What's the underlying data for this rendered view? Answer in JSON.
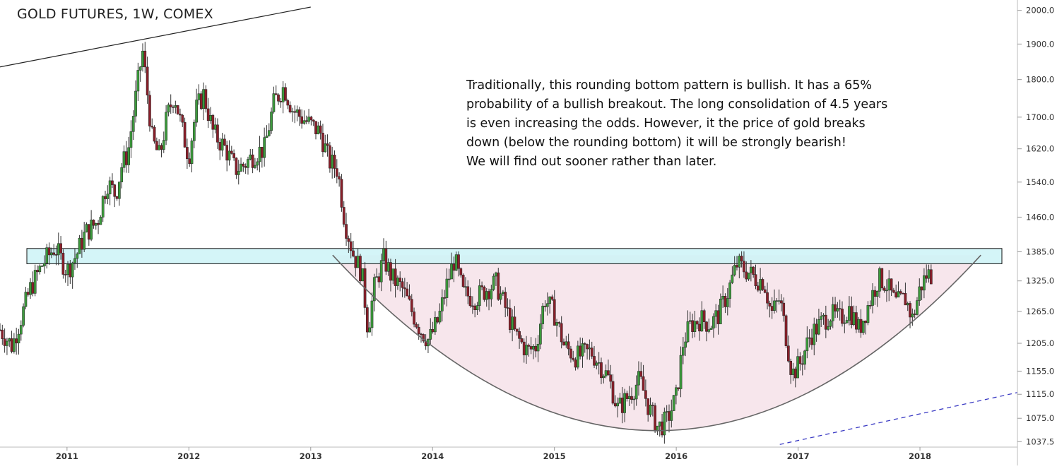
{
  "chart_data": {
    "type": "candlestick",
    "title": "GOLD FUTURES, 1W, COMEX",
    "annotation": [
      "Traditionally, this rounding bottom pattern is bullish. It has a 65%",
      "probability of a bullish breakout. The long consolidation of 4.5 years",
      "is even increasing the odds. However, it the price of gold breaks",
      "down (below the rounding bottom) it will be strongly bearish!",
      "We will find out sooner rather than later."
    ],
    "x_axis": {
      "ticks": [
        "2011",
        "2012",
        "2013",
        "2014",
        "2015",
        "2016",
        "2017",
        "2018"
      ],
      "range": [
        2010.45,
        2018.8
      ]
    },
    "y_axis": {
      "ticks": [
        "2000.0",
        "1900.0",
        "1800.0",
        "1700.0",
        "1620.0",
        "1540.0",
        "1460.0",
        "1385.0",
        "1325.0",
        "1265.0",
        "1205.0",
        "1155.0",
        "1115.0",
        "1075.0",
        "1037.5"
      ],
      "scale": "log",
      "range": [
        1030,
        2010
      ]
    },
    "colors": {
      "up": "#3c9a3c",
      "down": "#8a1f2a",
      "zone_fill": "#cdf3f7",
      "zone_stroke": "#111111",
      "bowl_fill": "#f7e6ec",
      "bowl_line": "#666666",
      "trend_line": "#222222",
      "dashed_line": "#3b3bc4"
    },
    "resistance_zone": {
      "low": 1360,
      "high": 1392,
      "x_start": 2010.45,
      "x_end": 2018.8
    },
    "rounding_bottom": {
      "x_start": 2013.18,
      "x_end": 2018.5,
      "top_price": 1378,
      "bottom_x": 2015.85,
      "bottom_price": 1055
    },
    "trend_line_upper": {
      "x1": 2010.45,
      "y1": 1835,
      "x2": 2013.0,
      "y2": 2010
    },
    "trend_line_dashed": {
      "x1": 2016.85,
      "y1": 1033,
      "x2": 2018.8,
      "y2": 1118
    },
    "price_path": [
      [
        2010.45,
        1230
      ],
      [
        2010.55,
        1200
      ],
      [
        2010.62,
        1250
      ],
      [
        2010.7,
        1310
      ],
      [
        2010.8,
        1360
      ],
      [
        2010.9,
        1395
      ],
      [
        2011.0,
        1345
      ],
      [
        2011.08,
        1380
      ],
      [
        2011.15,
        1425
      ],
      [
        2011.25,
        1450
      ],
      [
        2011.33,
        1540
      ],
      [
        2011.4,
        1510
      ],
      [
        2011.45,
        1580
      ],
      [
        2011.5,
        1610
      ],
      [
        2011.55,
        1720
      ],
      [
        2011.62,
        1880
      ],
      [
        2011.7,
        1640
      ],
      [
        2011.76,
        1600
      ],
      [
        2011.82,
        1700
      ],
      [
        2011.88,
        1760
      ],
      [
        2011.95,
        1660
      ],
      [
        2012.0,
        1600
      ],
      [
        2012.06,
        1720
      ],
      [
        2012.12,
        1760
      ],
      [
        2012.2,
        1660
      ],
      [
        2012.3,
        1620
      ],
      [
        2012.38,
        1570
      ],
      [
        2012.45,
        1580
      ],
      [
        2012.55,
        1610
      ],
      [
        2012.62,
        1620
      ],
      [
        2012.7,
        1740
      ],
      [
        2012.78,
        1780
      ],
      [
        2012.85,
        1720
      ],
      [
        2012.92,
        1700
      ],
      [
        2013.0,
        1680
      ],
      [
        2013.08,
        1660
      ],
      [
        2013.15,
        1590
      ],
      [
        2013.22,
        1570
      ],
      [
        2013.28,
        1450
      ],
      [
        2013.35,
        1380
      ],
      [
        2013.42,
        1340
      ],
      [
        2013.47,
        1230
      ],
      [
        2013.52,
        1310
      ],
      [
        2013.6,
        1370
      ],
      [
        2013.67,
        1330
      ],
      [
        2013.75,
        1310
      ],
      [
        2013.82,
        1270
      ],
      [
        2013.9,
        1230
      ],
      [
        2013.97,
        1210
      ],
      [
        2014.05,
        1250
      ],
      [
        2014.12,
        1320
      ],
      [
        2014.18,
        1370
      ],
      [
        2014.25,
        1300
      ],
      [
        2014.35,
        1290
      ],
      [
        2014.45,
        1310
      ],
      [
        2014.52,
        1320
      ],
      [
        2014.6,
        1270
      ],
      [
        2014.68,
        1220
      ],
      [
        2014.78,
        1190
      ],
      [
        2014.85,
        1200
      ],
      [
        2014.92,
        1290
      ],
      [
        2015.0,
        1260
      ],
      [
        2015.08,
        1200
      ],
      [
        2015.18,
        1180
      ],
      [
        2015.3,
        1190
      ],
      [
        2015.38,
        1165
      ],
      [
        2015.45,
        1140
      ],
      [
        2015.52,
        1090
      ],
      [
        2015.6,
        1110
      ],
      [
        2015.7,
        1140
      ],
      [
        2015.78,
        1090
      ],
      [
        2015.85,
        1060
      ],
      [
        2015.92,
        1070
      ],
      [
        2016.0,
        1110
      ],
      [
        2016.06,
        1210
      ],
      [
        2016.12,
        1240
      ],
      [
        2016.2,
        1250
      ],
      [
        2016.28,
        1240
      ],
      [
        2016.35,
        1260
      ],
      [
        2016.42,
        1300
      ],
      [
        2016.5,
        1360
      ],
      [
        2016.58,
        1345
      ],
      [
        2016.65,
        1330
      ],
      [
        2016.72,
        1325
      ],
      [
        2016.78,
        1260
      ],
      [
        2016.85,
        1290
      ],
      [
        2016.9,
        1220
      ],
      [
        2016.95,
        1150
      ],
      [
        2017.02,
        1170
      ],
      [
        2017.1,
        1220
      ],
      [
        2017.18,
        1240
      ],
      [
        2017.26,
        1260
      ],
      [
        2017.34,
        1250
      ],
      [
        2017.42,
        1270
      ],
      [
        2017.5,
        1230
      ],
      [
        2017.58,
        1280
      ],
      [
        2017.66,
        1330
      ],
      [
        2017.72,
        1320
      ],
      [
        2017.8,
        1280
      ],
      [
        2017.88,
        1290
      ],
      [
        2017.94,
        1250
      ],
      [
        2018.0,
        1310
      ],
      [
        2018.06,
        1340
      ],
      [
        2018.11,
        1335
      ]
    ]
  }
}
